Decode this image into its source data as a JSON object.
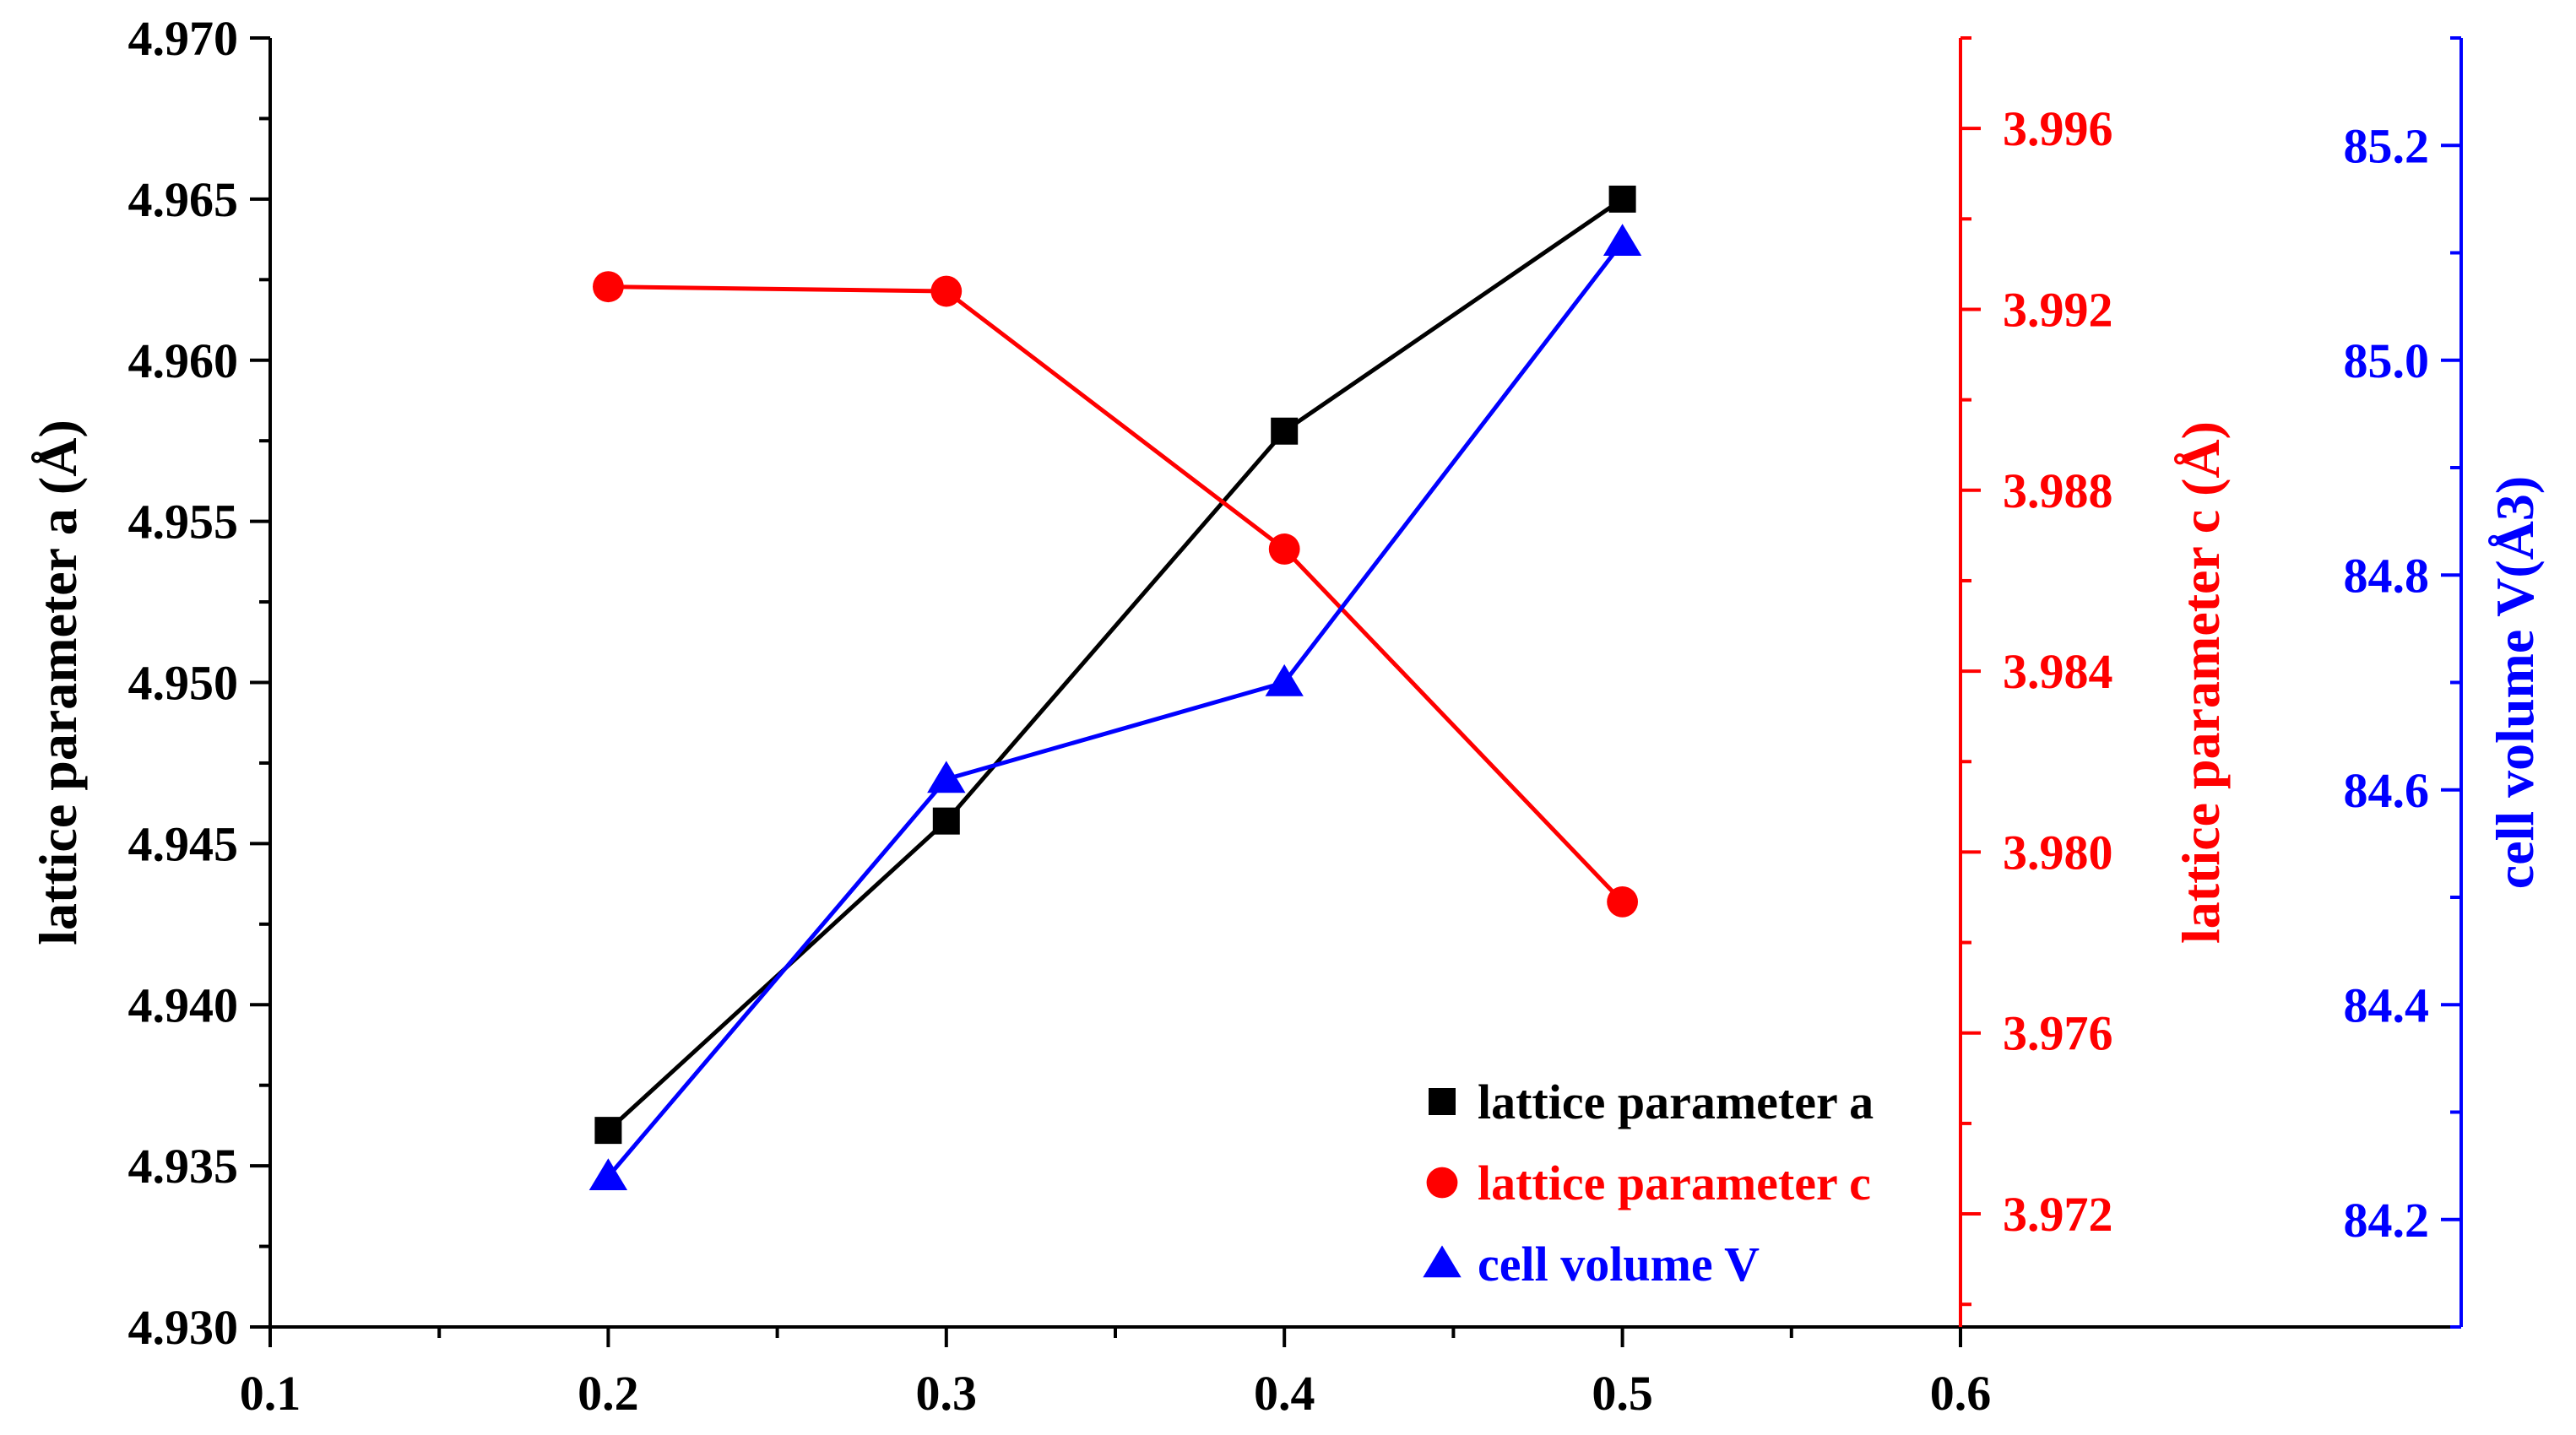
{
  "chart_data": {
    "type": "line",
    "x_axis": {
      "range": [
        0.1,
        0.6
      ],
      "ticks": [
        "0.1",
        "0.2",
        "0.3",
        "0.4",
        "0.5",
        "0.6"
      ],
      "label": ""
    },
    "left_axis": {
      "label": "lattice parameter a (Å)",
      "range": [
        4.93,
        4.97
      ],
      "ticks": [
        "4.930",
        "4.935",
        "4.940",
        "4.945",
        "4.950",
        "4.955",
        "4.960",
        "4.965",
        "4.970"
      ],
      "color": "#000000"
    },
    "right_axis_1": {
      "label": "lattice parameter c (Å)",
      "range": [
        3.9695,
        3.998
      ],
      "ticks": [
        "3.972",
        "3.976",
        "3.980",
        "3.984",
        "3.988",
        "3.992",
        "3.996"
      ],
      "color": "#ff0000"
    },
    "right_axis_2": {
      "label": "cell volume V(Å3)",
      "range": [
        84.1,
        85.3
      ],
      "ticks": [
        "84.2",
        "84.4",
        "84.6",
        "84.8",
        "85.0",
        "85.2"
      ],
      "color": "#0000ff"
    },
    "series": [
      {
        "name": "lattice parameter a",
        "axis": "left",
        "color": "#000000",
        "marker": "square",
        "x": [
          0.2,
          0.3,
          0.4,
          0.5
        ],
        "values": [
          4.9361,
          4.9457,
          4.9578,
          4.965
        ]
      },
      {
        "name": "lattice parameter c",
        "axis": "right1",
        "color": "#ff0000",
        "marker": "circle",
        "x": [
          0.2,
          0.3,
          0.4,
          0.5
        ],
        "values": [
          3.9925,
          3.9924,
          3.9867,
          3.9789
        ]
      },
      {
        "name": "cell volume V",
        "axis": "right2",
        "color": "#0000ff",
        "marker": "triangle",
        "x": [
          0.2,
          0.3,
          0.4,
          0.5
        ],
        "values": [
          84.24,
          84.61,
          84.7,
          85.11
        ]
      }
    ],
    "legend": {
      "placement": "bottom-right",
      "entries": [
        "lattice parameter a",
        "lattice parameter c",
        "cell volume V"
      ]
    }
  }
}
